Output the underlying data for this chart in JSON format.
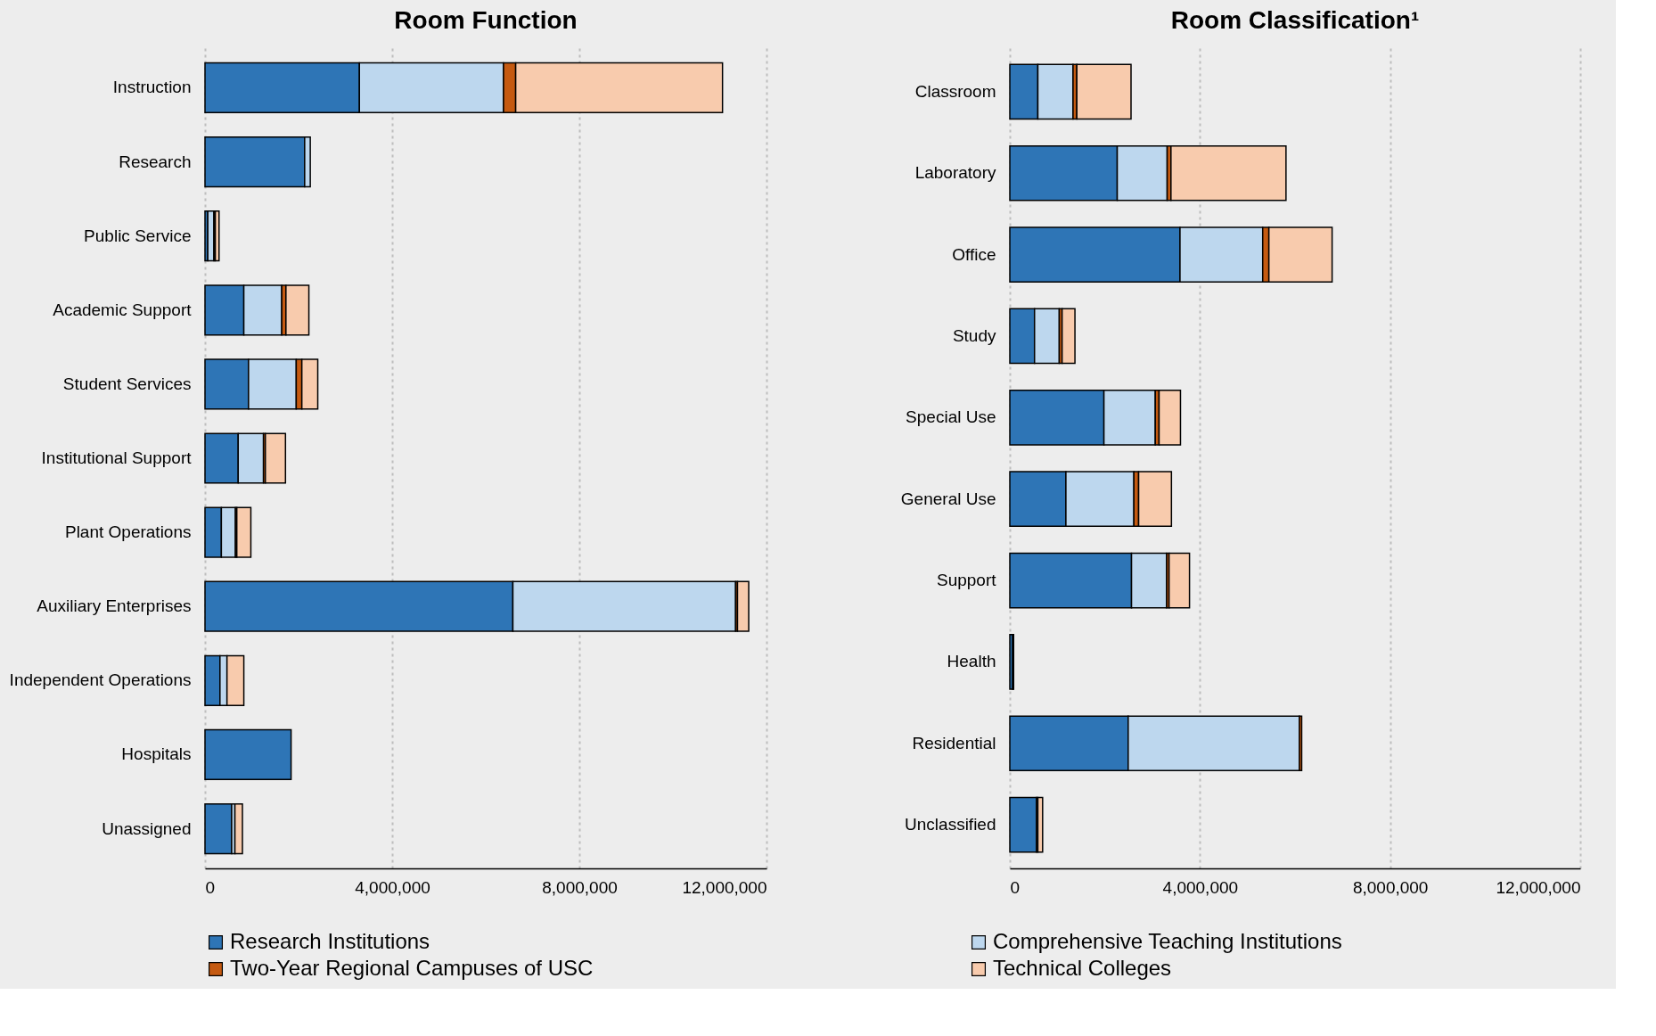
{
  "chart_data": [
    {
      "type": "bar",
      "orientation": "horizontal",
      "stacked": true,
      "title": "Room Function",
      "categories": [
        "Instruction",
        "Research",
        "Public Service",
        "Academic Support",
        "Student Services",
        "Institutional Support",
        "Plant Operations",
        "Auxiliary Enterprises",
        "Independent Operations",
        "Hospitals",
        "Unassigned"
      ],
      "series": [
        {
          "name": "Research Institutions",
          "color": "#2e75b6",
          "values": [
            3300000,
            2130000,
            60000,
            830000,
            930000,
            710000,
            350000,
            6580000,
            320000,
            1840000,
            570000
          ]
        },
        {
          "name": "Comprehensive Teaching Institutions",
          "color": "#bdd7ee",
          "values": [
            3080000,
            120000,
            130000,
            810000,
            1020000,
            540000,
            300000,
            4760000,
            150000,
            0,
            70000
          ]
        },
        {
          "name": "Two-Year Regional Campuses of USC",
          "color": "#c55a11",
          "values": [
            260000,
            0,
            30000,
            90000,
            120000,
            40000,
            30000,
            40000,
            null,
            0,
            null
          ]
        },
        {
          "name": "Technical Colleges",
          "color": "#f8cbad",
          "values": [
            4420000,
            0,
            80000,
            490000,
            340000,
            430000,
            300000,
            240000,
            360000,
            0,
            160000
          ]
        }
      ],
      "xlim": [
        0,
        12000000
      ],
      "xticks": [
        0,
        {
          "value": 4000000,
          "label": "4,000,000"
        },
        {
          "value": 8000000,
          "label": "8,000,000"
        },
        {
          "value": 12000000,
          "label": "12,000,000"
        }
      ],
      "grid": "x",
      "legend": "bottom"
    },
    {
      "type": "bar",
      "orientation": "horizontal",
      "stacked": true,
      "title": "Room Classification¹",
      "categories": [
        "Classroom",
        "Laboratory",
        "Office",
        "Study",
        "Special Use",
        "General Use",
        "Support",
        "Health",
        "Residential",
        "Unclassified"
      ],
      "series": [
        {
          "name": "Research Institutions",
          "color": "#2e75b6",
          "values": [
            590000,
            2260000,
            3580000,
            520000,
            1980000,
            1180000,
            2560000,
            60000,
            2490000,
            560000
          ]
        },
        {
          "name": "Comprehensive Teaching Institutions",
          "color": "#bdd7ee",
          "values": [
            740000,
            1050000,
            1740000,
            520000,
            1080000,
            1430000,
            740000,
            null,
            3600000,
            30000
          ]
        },
        {
          "name": "Two-Year Regional Campuses of USC",
          "color": "#c55a11",
          "values": [
            80000,
            80000,
            130000,
            60000,
            80000,
            100000,
            50000,
            10000,
            50000,
            null
          ]
        },
        {
          "name": "Technical Colleges",
          "color": "#f8cbad",
          "values": [
            1140000,
            2420000,
            1330000,
            270000,
            450000,
            690000,
            430000,
            10000,
            0,
            100000
          ]
        }
      ],
      "xlim": [
        0,
        12000000
      ],
      "xticks": [
        0,
        {
          "value": 4000000,
          "label": "4,000,000"
        },
        {
          "value": 8000000,
          "label": "8,000,000"
        },
        {
          "value": 12000000,
          "label": "12,000,000"
        }
      ],
      "grid": "x",
      "legend": "bottom"
    }
  ]
}
